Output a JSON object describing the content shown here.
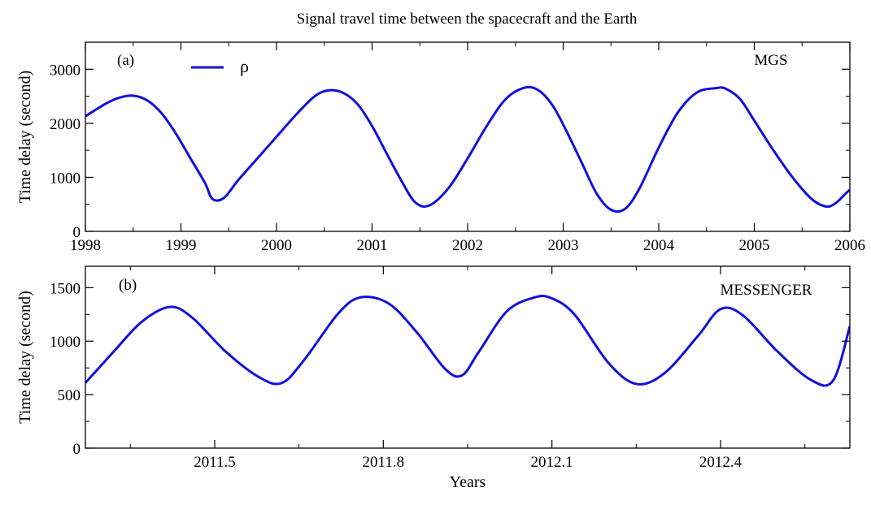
{
  "figure": {
    "title": "Signal travel time between the spacecraft and the Earth",
    "xlabel": "Years"
  },
  "colors": {
    "line": "#1010dd",
    "axis": "#000000"
  },
  "chart_data": [
    {
      "type": "line",
      "panel_label": "(a)",
      "annotation": "MGS",
      "ylabel": "Time delay (second)",
      "legend": {
        "label": "ρ",
        "placement": "top-left"
      },
      "xlim": [
        1998,
        2006
      ],
      "ylim": [
        0,
        3500
      ],
      "xticks": [
        1998,
        1999,
        2000,
        2001,
        2002,
        2003,
        2004,
        2005,
        2006
      ],
      "xtick_labels": [
        "1998",
        "1999",
        "2000",
        "2001",
        "2002",
        "2003",
        "2004",
        "2005",
        "2006"
      ],
      "xminor": [
        1998.5,
        1999.5,
        2000.5,
        2001.5,
        2002.5,
        2003.5,
        2004.5,
        2005.5
      ],
      "yticks": [
        0,
        1000,
        2000,
        3000
      ],
      "ytick_labels": [
        "0",
        "1000",
        "2000",
        "3000"
      ],
      "yminor": [
        500,
        1500,
        2500
      ],
      "series": [
        {
          "name": "ρ",
          "x": [
            1998.0,
            1998.2,
            1998.35,
            1998.5,
            1998.65,
            1998.8,
            1998.95,
            1999.1,
            1999.25,
            1999.33,
            1999.45,
            1999.6,
            1999.8,
            2000.0,
            2000.2,
            2000.4,
            2000.55,
            2000.7,
            2000.85,
            2001.0,
            2001.15,
            2001.3,
            2001.45,
            2001.6,
            2001.8,
            2002.0,
            2002.2,
            2002.4,
            2002.6,
            2002.75,
            2002.9,
            2003.05,
            2003.2,
            2003.35,
            2003.5,
            2003.65,
            2003.8,
            2004.0,
            2004.2,
            2004.4,
            2004.6,
            2004.7,
            2004.85,
            2005.0,
            2005.2,
            2005.4,
            2005.6,
            2005.75,
            2005.85,
            2005.95,
            2006.0
          ],
          "y": [
            2130,
            2350,
            2470,
            2510,
            2420,
            2180,
            1800,
            1350,
            900,
            600,
            620,
            950,
            1350,
            1750,
            2150,
            2500,
            2610,
            2560,
            2350,
            1950,
            1450,
            960,
            540,
            480,
            800,
            1350,
            1950,
            2450,
            2660,
            2600,
            2300,
            1800,
            1250,
            700,
            400,
            420,
            800,
            1550,
            2200,
            2570,
            2650,
            2640,
            2450,
            2050,
            1500,
            1000,
            600,
            460,
            520,
            690,
            770
          ]
        }
      ]
    },
    {
      "type": "line",
      "panel_label": "(b)",
      "annotation": "MESSENGER",
      "ylabel": "Time delay (second)",
      "xlim": [
        2011.27,
        2012.63
      ],
      "ylim": [
        0,
        1700
      ],
      "xticks": [
        2011.5,
        2011.8,
        2012.1,
        2012.4
      ],
      "xtick_labels": [
        "2011.5",
        "2011.8",
        "2012.1",
        "2012.4"
      ],
      "xminor": [
        2011.35,
        2011.65,
        2011.95,
        2012.25,
        2012.55
      ],
      "yticks": [
        0,
        500,
        1000,
        1500
      ],
      "ytick_labels": [
        "0",
        "500",
        "1000",
        "1500"
      ],
      "yminor": [
        250,
        750,
        1250
      ],
      "series": [
        {
          "name": "ρ",
          "x": [
            2011.27,
            2011.32,
            2011.37,
            2011.42,
            2011.46,
            2011.52,
            2011.58,
            2011.62,
            2011.66,
            2011.72,
            2011.76,
            2011.81,
            2011.86,
            2011.91,
            2011.94,
            2011.97,
            2012.02,
            2012.07,
            2012.1,
            2012.14,
            2012.2,
            2012.25,
            2012.3,
            2012.36,
            2012.4,
            2012.44,
            2012.5,
            2012.56,
            2012.6,
            2012.63
          ],
          "y": [
            610,
            900,
            1180,
            1320,
            1220,
            900,
            660,
            610,
            830,
            1260,
            1410,
            1350,
            1080,
            740,
            680,
            900,
            1280,
            1410,
            1400,
            1250,
            800,
            600,
            700,
            1050,
            1300,
            1240,
            910,
            640,
            630,
            1140
          ]
        }
      ]
    }
  ]
}
